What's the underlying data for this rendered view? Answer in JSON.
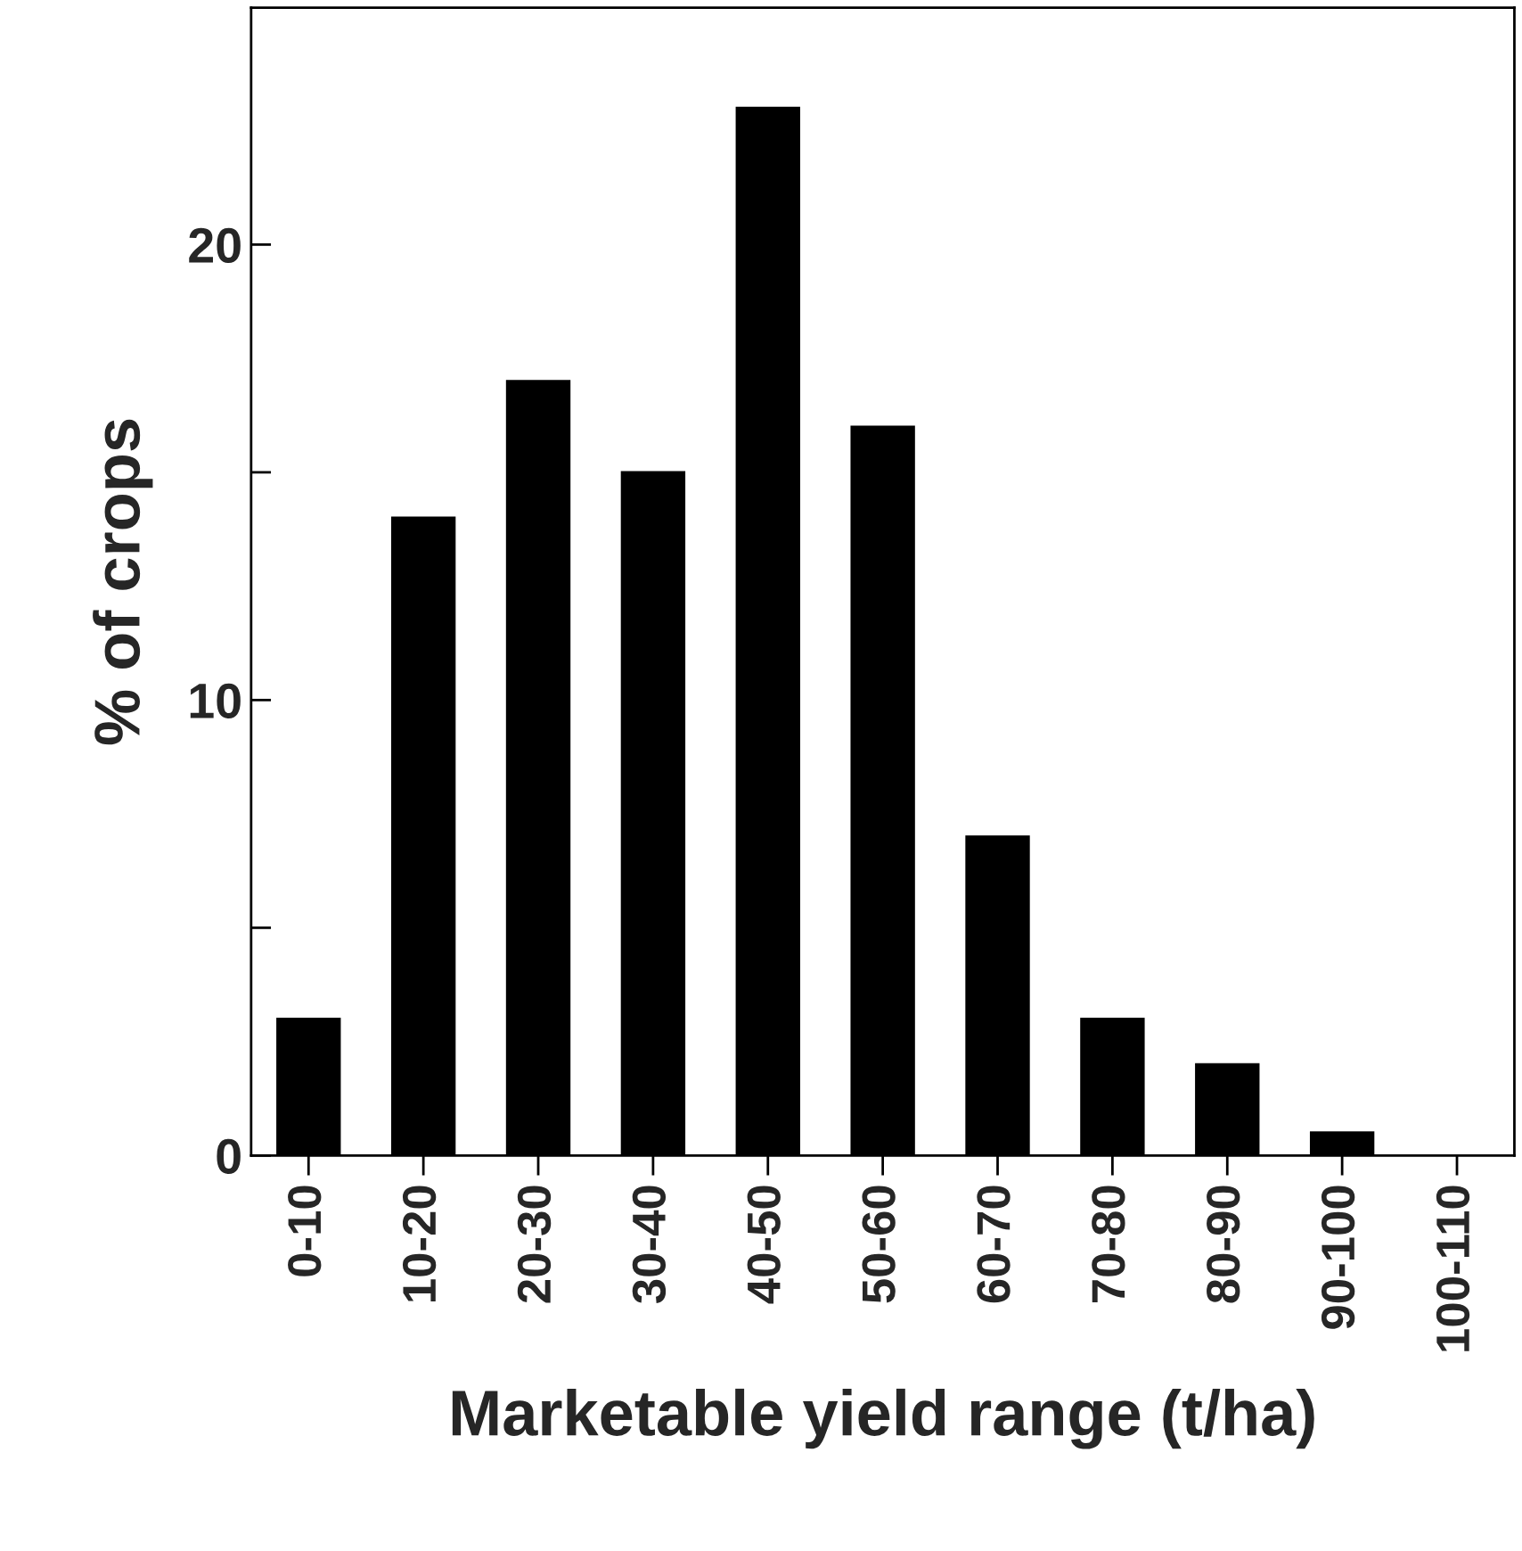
{
  "chart_data": {
    "type": "bar",
    "xlabel": "Marketable yield range (t/ha)",
    "ylabel": "% of crops",
    "categories": [
      "0-10",
      "10-20",
      "20-30",
      "30-40",
      "40-50",
      "50-60",
      "60-70",
      "70-80",
      "80-90",
      "90-100",
      "100-110"
    ],
    "values": [
      3,
      14,
      17,
      15,
      23,
      16,
      7,
      3,
      2,
      0.5,
      0
    ],
    "color": "#000000",
    "ylim": [
      0,
      25.2
    ],
    "yticks": [
      0,
      {
        "value": 5,
        "label": null
      },
      10,
      {
        "value": 15,
        "label": null
      },
      20
    ],
    "grid": false,
    "legend": false
  }
}
